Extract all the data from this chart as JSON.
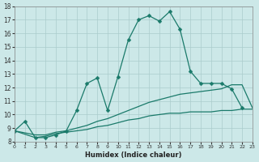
{
  "xlabel": "Humidex (Indice chaleur)",
  "bg_color": "#cce8e8",
  "line_color": "#1a7a6a",
  "grid_color": "#aacccc",
  "curve1_x": [
    0,
    1,
    2,
    3,
    4,
    5,
    6,
    7,
    8,
    9,
    10,
    11,
    12,
    13,
    14,
    15,
    16,
    17,
    18,
    19,
    20,
    21,
    22
  ],
  "curve1_y": [
    8.8,
    9.5,
    8.3,
    8.3,
    8.5,
    8.8,
    10.3,
    12.3,
    12.7,
    10.3,
    12.8,
    15.5,
    17.0,
    17.3,
    16.9,
    17.6,
    16.3,
    13.2,
    12.3,
    12.3,
    12.3,
    11.9,
    10.5
  ],
  "curve2_x": [
    0,
    2,
    3,
    4,
    5,
    6,
    7,
    8,
    9,
    10,
    11,
    12,
    13,
    14,
    15,
    16,
    17,
    18,
    19,
    20,
    21,
    22,
    23
  ],
  "curve2_y": [
    8.8,
    8.5,
    8.5,
    8.7,
    8.8,
    9.0,
    9.2,
    9.5,
    9.7,
    10.0,
    10.3,
    10.6,
    10.9,
    11.1,
    11.3,
    11.5,
    11.6,
    11.7,
    11.8,
    11.9,
    12.2,
    12.2,
    10.5
  ],
  "curve3_x": [
    0,
    2,
    3,
    4,
    5,
    6,
    7,
    8,
    9,
    10,
    11,
    12,
    13,
    14,
    15,
    16,
    17,
    18,
    19,
    20,
    21,
    22,
    23
  ],
  "curve3_y": [
    8.8,
    8.3,
    8.4,
    8.6,
    8.7,
    8.8,
    8.9,
    9.1,
    9.2,
    9.4,
    9.6,
    9.7,
    9.9,
    10.0,
    10.1,
    10.1,
    10.2,
    10.2,
    10.2,
    10.3,
    10.3,
    10.4,
    10.4
  ],
  "xlim": [
    0,
    23
  ],
  "ylim": [
    8,
    18
  ],
  "xticks": [
    0,
    1,
    2,
    3,
    4,
    5,
    6,
    7,
    8,
    9,
    10,
    11,
    12,
    13,
    14,
    15,
    16,
    17,
    18,
    19,
    20,
    21,
    22,
    23
  ],
  "yticks": [
    8,
    9,
    10,
    11,
    12,
    13,
    14,
    15,
    16,
    17,
    18
  ]
}
